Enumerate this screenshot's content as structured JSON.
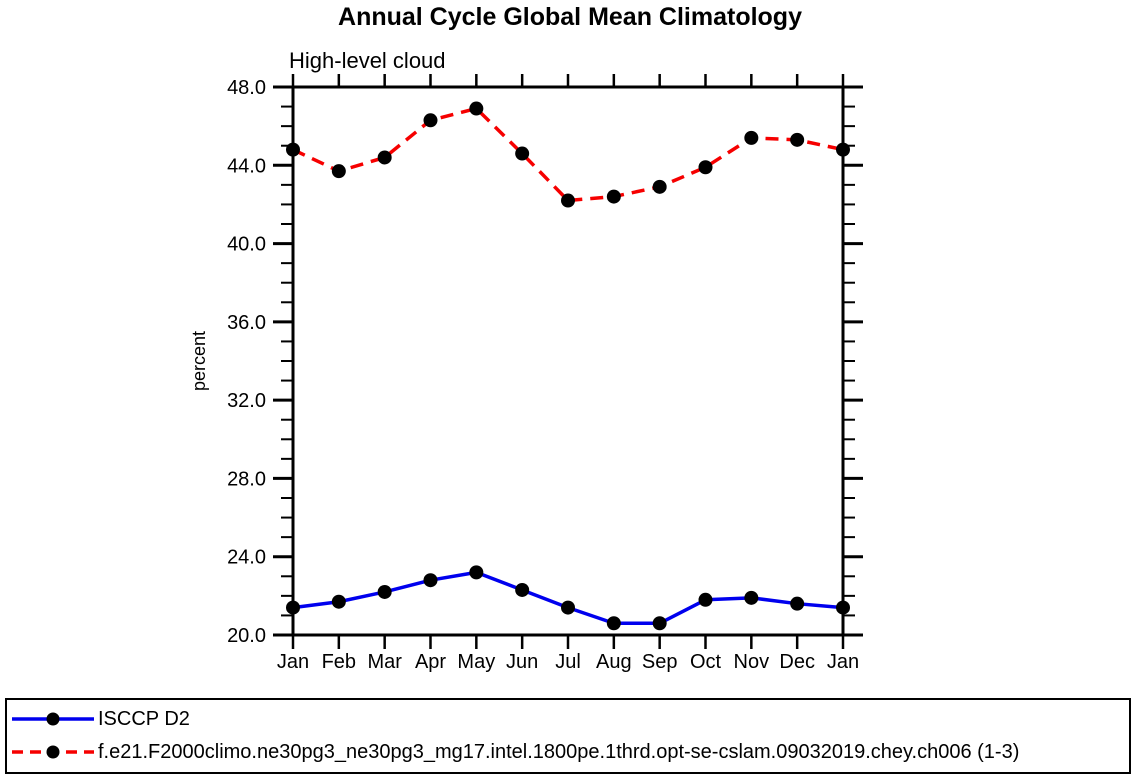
{
  "chart_data": {
    "type": "line",
    "title": "Annual Cycle Global Mean Climatology",
    "subtitle": "High-level cloud",
    "ylabel": "percent",
    "xlabel": "",
    "x_categories": [
      "Jan",
      "Feb",
      "Mar",
      "Apr",
      "May",
      "Jun",
      "Jul",
      "Aug",
      "Sep",
      "Oct",
      "Nov",
      "Dec",
      "Jan"
    ],
    "ylim": [
      20.0,
      48.0
    ],
    "y_major_ticks": [
      20.0,
      24.0,
      28.0,
      32.0,
      36.0,
      40.0,
      44.0,
      48.0
    ],
    "y_tick_labels": [
      "20.0",
      "24.0",
      "28.0",
      "32.0",
      "36.0",
      "40.0",
      "44.0",
      "48.0"
    ],
    "y_minor_step": 1.0,
    "grid": false,
    "frame": "box-with-outward-ticks",
    "legend_position": "bottom-left-box",
    "marker": "filled-circle",
    "marker_color": "#000000",
    "axis_color": "#000000",
    "series": [
      {
        "name": "ISCCP D2",
        "color": "#0000ee",
        "line_style": "solid",
        "values": [
          21.4,
          21.7,
          22.2,
          22.8,
          23.2,
          22.3,
          21.4,
          20.6,
          20.6,
          21.8,
          21.9,
          21.6,
          21.4
        ]
      },
      {
        "name": "f.e21.F2000climo.ne30pg3_ne30pg3_mg17.intel.1800pe.1thrd.opt-se-cslam.09032019.chey.ch006 (1-3)",
        "color": "#f60000",
        "line_style": "dashed",
        "values": [
          44.8,
          43.7,
          44.4,
          46.3,
          46.9,
          44.6,
          42.2,
          42.4,
          42.9,
          43.9,
          45.4,
          45.3,
          44.8
        ]
      }
    ]
  }
}
